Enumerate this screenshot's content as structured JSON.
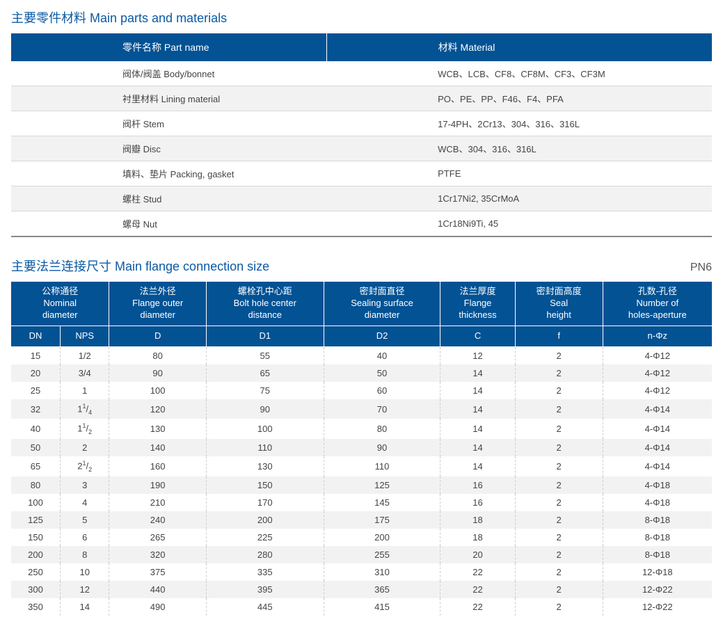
{
  "section1": {
    "title": "主要零件材料 Main parts and materials",
    "headers": [
      "零件名称 Part name",
      "材料 Material"
    ],
    "rows": [
      [
        "阀体/阀盖 Body/bonnet",
        "WCB、LCB、CF8、CF8M、CF3、CF3M"
      ],
      [
        "衬里材料 Lining material",
        "PO、PE、PP、F46、F4、PFA"
      ],
      [
        "阀杆 Stem",
        "17-4PH、2Cr13、304、316、316L"
      ],
      [
        "阀瓣 Disc",
        "WCB、304、316、316L"
      ],
      [
        "填料、垫片 Packing, gasket",
        "PTFE"
      ],
      [
        "螺柱 Stud",
        "1Cr17Ni2, 35CrMoA"
      ],
      [
        "螺母 Nut",
        "1Cr18Ni9Ti, 45"
      ]
    ]
  },
  "section2": {
    "title": "主要法兰连接尺寸 Main flange connection size",
    "pn": "PN6",
    "topHeaders": [
      {
        "cn": "公称通径",
        "en": "Nominal<br>diameter",
        "colspan": 2
      },
      {
        "cn": "法兰外径",
        "en": "Flange outer<br>diameter",
        "colspan": 1
      },
      {
        "cn": "螺栓孔中心距",
        "en": "Bolt hole center<br>distance",
        "colspan": 1
      },
      {
        "cn": "密封面直径",
        "en": "Sealing surface<br>diameter",
        "colspan": 1
      },
      {
        "cn": "法兰厚度",
        "en": "Flange<br>thickness",
        "colspan": 1
      },
      {
        "cn": "密封面高度",
        "en": "Seal<br>height",
        "colspan": 1
      },
      {
        "cn": "孔数-孔径",
        "en": "Number of<br>holes-aperture",
        "colspan": 1
      }
    ],
    "subHeaders": [
      "DN",
      "NPS",
      "D",
      "D1",
      "D2",
      "C",
      "f",
      "n-Φz"
    ],
    "rows": [
      [
        "15",
        "1/2",
        "80",
        "55",
        "40",
        "12",
        "2",
        "4-Φ12"
      ],
      [
        "20",
        "3/4",
        "90",
        "65",
        "50",
        "14",
        "2",
        "4-Φ12"
      ],
      [
        "25",
        "1",
        "100",
        "75",
        "60",
        "14",
        "2",
        "4-Φ12"
      ],
      [
        "32",
        "1¹/₄",
        "120",
        "90",
        "70",
        "14",
        "2",
        "4-Φ14"
      ],
      [
        "40",
        "1¹/₂",
        "130",
        "100",
        "80",
        "14",
        "2",
        "4-Φ14"
      ],
      [
        "50",
        "2",
        "140",
        "110",
        "90",
        "14",
        "2",
        "4-Φ14"
      ],
      [
        "65",
        "2¹/₂",
        "160",
        "130",
        "110",
        "14",
        "2",
        "4-Φ14"
      ],
      [
        "80",
        "3",
        "190",
        "150",
        "125",
        "16",
        "2",
        "4-Φ18"
      ],
      [
        "100",
        "4",
        "210",
        "170",
        "145",
        "16",
        "2",
        "4-Φ18"
      ],
      [
        "125",
        "5",
        "240",
        "200",
        "175",
        "18",
        "2",
        "8-Φ18"
      ],
      [
        "150",
        "6",
        "265",
        "225",
        "200",
        "18",
        "2",
        "8-Φ18"
      ],
      [
        "200",
        "8",
        "320",
        "280",
        "255",
        "20",
        "2",
        "8-Φ18"
      ],
      [
        "250",
        "10",
        "375",
        "335",
        "310",
        "22",
        "2",
        "12-Φ18"
      ],
      [
        "300",
        "12",
        "440",
        "395",
        "365",
        "22",
        "2",
        "12-Φ22"
      ],
      [
        "350",
        "14",
        "490",
        "445",
        "415",
        "22",
        "2",
        "12-Φ22"
      ]
    ]
  },
  "colors": {
    "header_bg": "#025294",
    "header_text": "#ffffff",
    "title": "#0a5aa5",
    "row_alt": "#f2f2f2",
    "border": "#d8d8d8"
  }
}
